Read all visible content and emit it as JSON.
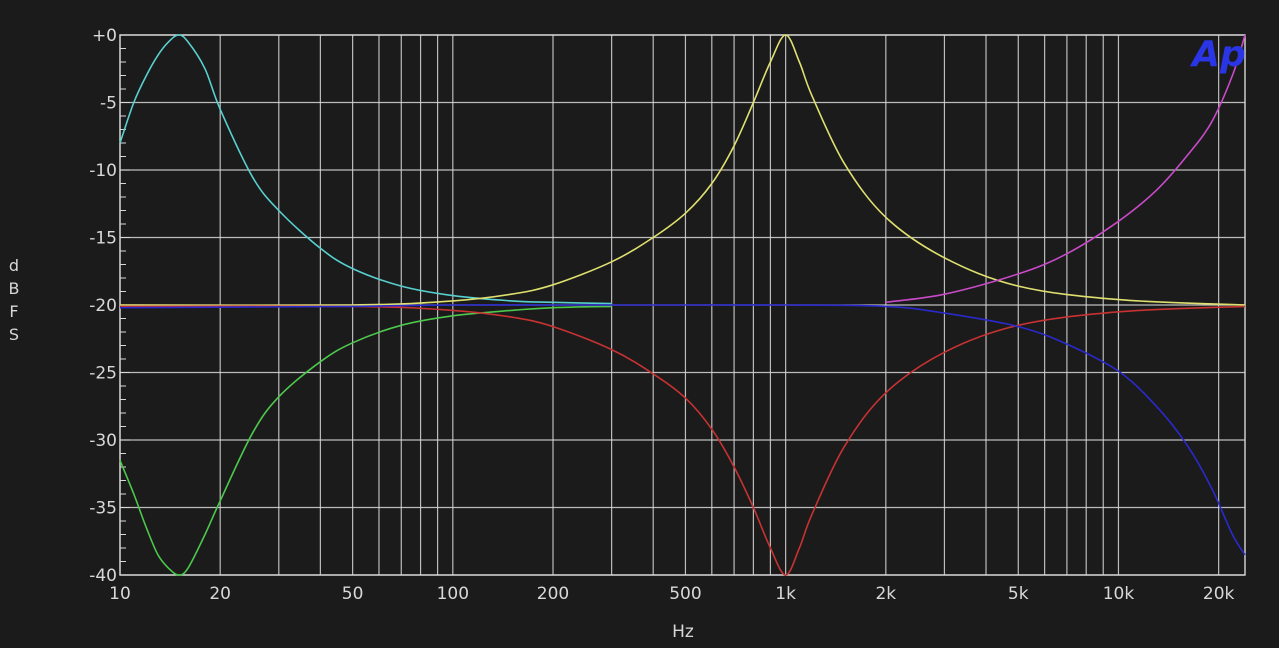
{
  "chart_data": {
    "type": "line",
    "title": "",
    "xlabel": "Hz",
    "ylabel": "dBFS",
    "x_scale": "log",
    "xlim": [
      10,
      24000
    ],
    "ylim": [
      -40,
      0
    ],
    "grid": true,
    "x_ticks": [
      {
        "value": 10,
        "label": "10"
      },
      {
        "value": 20,
        "label": "20"
      },
      {
        "value": 50,
        "label": "50"
      },
      {
        "value": 100,
        "label": "100"
      },
      {
        "value": 200,
        "label": "200"
      },
      {
        "value": 500,
        "label": "500"
      },
      {
        "value": 1000,
        "label": "1k"
      },
      {
        "value": 2000,
        "label": "2k"
      },
      {
        "value": 5000,
        "label": "5k"
      },
      {
        "value": 10000,
        "label": "10k"
      },
      {
        "value": 20000,
        "label": "20k"
      }
    ],
    "y_ticks": [
      {
        "value": 0,
        "label": "+0"
      },
      {
        "value": -5,
        "label": "-5"
      },
      {
        "value": -10,
        "label": "-10"
      },
      {
        "value": -15,
        "label": "-15"
      },
      {
        "value": -20,
        "label": "-20"
      },
      {
        "value": -25,
        "label": "-25"
      },
      {
        "value": -30,
        "label": "-30"
      },
      {
        "value": -35,
        "label": "-35"
      },
      {
        "value": -40,
        "label": "-40"
      }
    ],
    "logo": "Ap",
    "logo_color": "#2a36e6",
    "background_color": "#1b1b1b",
    "grid_color": "#d8d8d8",
    "series": [
      {
        "color": "#58d0d0",
        "x": [
          10,
          11,
          12,
          13,
          14,
          15,
          16,
          18,
          20,
          25,
          30,
          40,
          50,
          70,
          100,
          150,
          200,
          300
        ],
        "y": [
          -8,
          -5,
          -3,
          -1.5,
          -0.5,
          0,
          -0.5,
          -2.5,
          -5.5,
          -10.5,
          -13,
          -15.8,
          -17.3,
          -18.6,
          -19.3,
          -19.7,
          -19.8,
          -19.9
        ]
      },
      {
        "color": "#4cc84c",
        "x": [
          10,
          11,
          12,
          13,
          14,
          15,
          16,
          18,
          20,
          25,
          30,
          40,
          50,
          70,
          100,
          150,
          200,
          300
        ],
        "y": [
          -31.5,
          -34,
          -36.5,
          -38.5,
          -39.5,
          -40,
          -39.5,
          -37,
          -34.5,
          -29.5,
          -26.8,
          -24.2,
          -22.8,
          -21.5,
          -20.8,
          -20.4,
          -20.2,
          -20.1
        ]
      },
      {
        "color": "#e0e070",
        "x": [
          10,
          50,
          100,
          150,
          200,
          300,
          400,
          500,
          600,
          700,
          800,
          900,
          1000,
          1100,
          1200,
          1500,
          2000,
          3000,
          5000,
          10000,
          24000
        ],
        "y": [
          -20,
          -20,
          -19.7,
          -19.2,
          -18.5,
          -16.8,
          -15.0,
          -13.2,
          -11.0,
          -8.2,
          -5.0,
          -2.0,
          0,
          -2.0,
          -4.5,
          -9.5,
          -13.5,
          -16.5,
          -18.6,
          -19.6,
          -20
        ]
      },
      {
        "color": "#c83232",
        "x": [
          10,
          50,
          100,
          150,
          200,
          300,
          400,
          500,
          600,
          700,
          800,
          900,
          1000,
          1100,
          1200,
          1500,
          2000,
          3000,
          5000,
          10000,
          24000
        ],
        "y": [
          -20.1,
          -20.1,
          -20.4,
          -20.9,
          -21.6,
          -23.3,
          -25.1,
          -26.9,
          -29.2,
          -32.0,
          -35.0,
          -38.0,
          -40,
          -38.0,
          -35.5,
          -30.5,
          -26.5,
          -23.5,
          -21.5,
          -20.5,
          -20.1
        ]
      },
      {
        "color": "#c84ac8",
        "x": [
          2000,
          3000,
          5000,
          7000,
          10000,
          13000,
          16000,
          19000,
          22000,
          24000
        ],
        "y": [
          -19.8,
          -19.2,
          -17.7,
          -16.2,
          -13.8,
          -11.5,
          -9.0,
          -6.5,
          -3.0,
          0
        ]
      },
      {
        "color": "#2a2acc",
        "x": [
          10,
          50,
          100,
          200,
          500,
          1000,
          2000,
          3000,
          5000,
          7000,
          10000,
          13000,
          16000,
          19000,
          22000,
          24000
        ],
        "y": [
          -20.2,
          -20.1,
          -20,
          -20,
          -20,
          -20,
          -20.1,
          -20.6,
          -21.6,
          -22.9,
          -24.9,
          -27.5,
          -30.3,
          -33.5,
          -37,
          -38.5
        ]
      }
    ]
  }
}
